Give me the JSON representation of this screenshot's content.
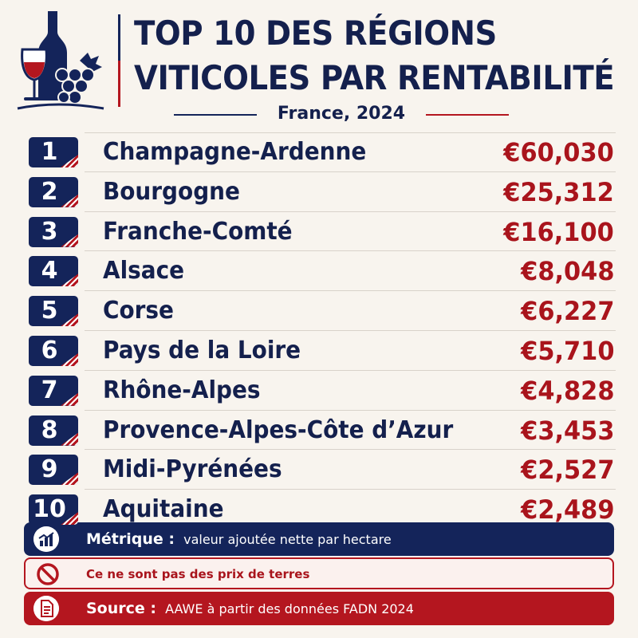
{
  "header": {
    "title_line1": "TOP 10 DES RÉGIONS",
    "title_line2": "VITICOLES PAR RENTABILITÉ",
    "subtitle": "France, 2024"
  },
  "icons": {
    "logo": "wine-bottle-glass-grapes-icon",
    "metric": "bar-chart-growth-icon",
    "note": "prohibited-icon",
    "source": "document-icon"
  },
  "colors": {
    "navy": "#14245a",
    "red": "#b4161f",
    "background": "#f8f4ee"
  },
  "ranking": [
    {
      "rank": "1",
      "region": "Champagne-Ardenne",
      "value": "€60,030"
    },
    {
      "rank": "2",
      "region": "Bourgogne",
      "value": "€25,312"
    },
    {
      "rank": "3",
      "region": "Franche-Comté",
      "value": "€16,100"
    },
    {
      "rank": "4",
      "region": "Alsace",
      "value": "€8,048"
    },
    {
      "rank": "5",
      "region": "Corse",
      "value": "€6,227"
    },
    {
      "rank": "6",
      "region": "Pays de la Loire",
      "value": "€5,710"
    },
    {
      "rank": "7",
      "region": "Rhône-Alpes",
      "value": "€4,828"
    },
    {
      "rank": "8",
      "region": "Provence-Alpes-Côte d’Azur",
      "value": "€3,453"
    },
    {
      "rank": "9",
      "region": "Midi-Pyrénées",
      "value": "€2,527"
    },
    {
      "rank": "10",
      "region": "Aquitaine",
      "value": "€2,489"
    }
  ],
  "footer": {
    "metric_label": "Métrique :",
    "metric_text": "valeur ajoutée nette par hectare",
    "note_text": "Ce ne sont pas des prix de terres",
    "source_label": "Source :",
    "source_text": "AAWE à partir des données FADN 2024"
  }
}
